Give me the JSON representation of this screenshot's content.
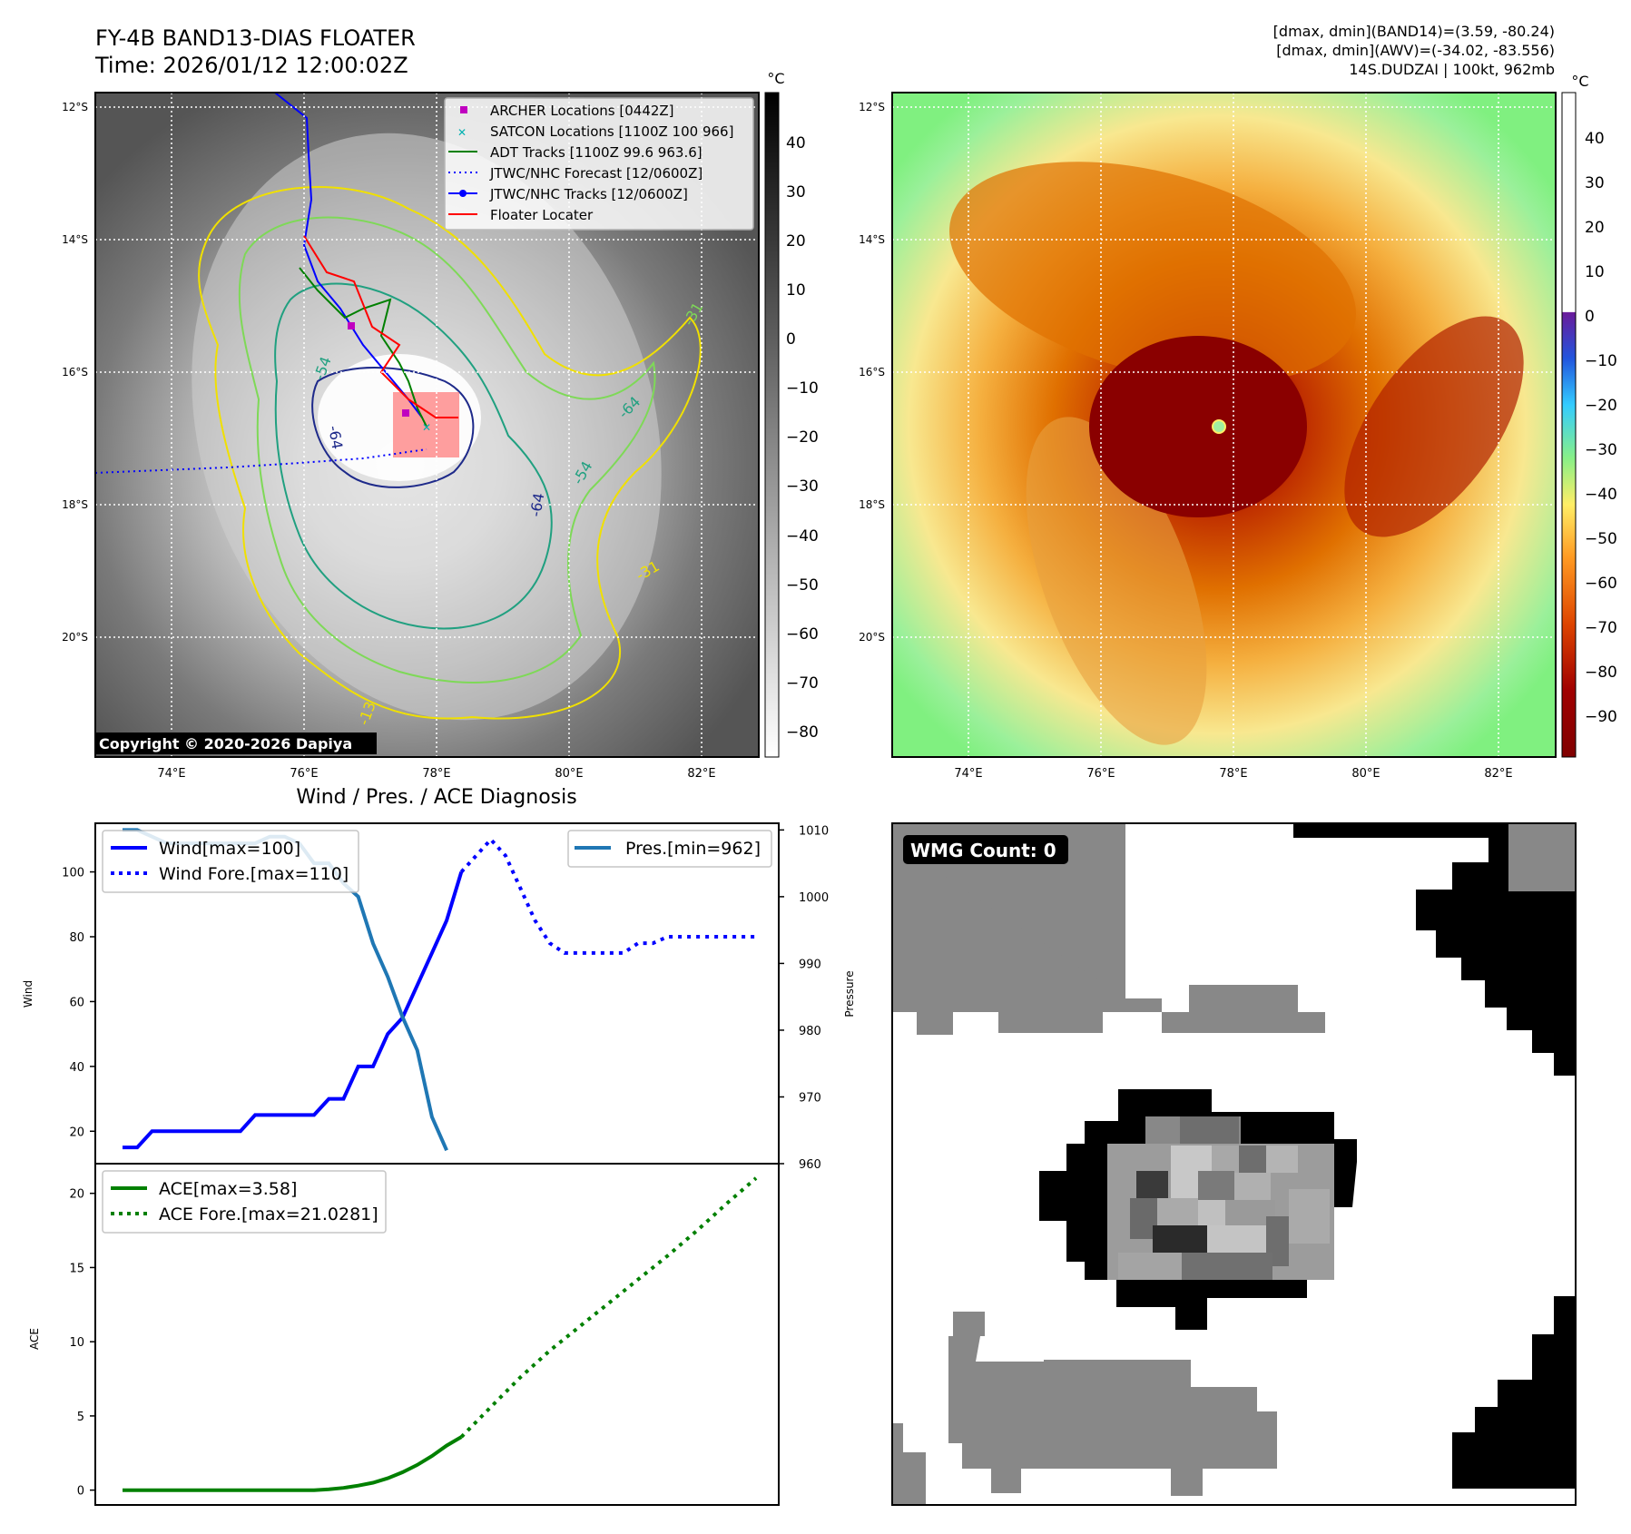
{
  "header": {
    "title_line1": "FY-4B BAND13-DIAS FLOATER",
    "title_line2": "Time: 2026/01/12 12:00:02Z",
    "info_line1": "[dmax, dmin](BAND14)=(3.59, -80.24)",
    "info_line2": "[dmax, dmin](AWV)=(-34.02, -83.556)",
    "info_line3": "14S.DUDZAI | 100kt, 962mb"
  },
  "map": {
    "lat_labels": [
      "12°S",
      "14°S",
      "16°S",
      "18°S",
      "20°S"
    ],
    "lon_labels": [
      "74°E",
      "76°E",
      "78°E",
      "80°E",
      "82°E"
    ],
    "copyright": "Copyright © 2020-2026 Dapiya",
    "contour_labels": [
      "-64",
      "-54",
      "-31",
      "-64",
      "-64",
      "-54",
      "-31",
      "-13"
    ]
  },
  "colorbar_left": {
    "unit": "°C",
    "ticks": [
      "40",
      "30",
      "20",
      "10",
      "0",
      "−10",
      "−20",
      "−30",
      "−40",
      "−50",
      "−60",
      "−70",
      "−80"
    ]
  },
  "colorbar_right": {
    "unit": "°C",
    "ticks": [
      "40",
      "30",
      "20",
      "10",
      "0",
      "−10",
      "−20",
      "−30",
      "−40",
      "−50",
      "−60",
      "−70",
      "−80",
      "−90"
    ]
  },
  "legend": {
    "items": [
      {
        "label": "ARCHER Locations [0442Z]",
        "color": "#c000c0",
        "kind": "square"
      },
      {
        "label": "SATCON Locations [1100Z 100 966]",
        "color": "#00b0b0",
        "kind": "x"
      },
      {
        "label": "ADT Tracks [1100Z 99.6 963.6]",
        "color": "#008000",
        "kind": "line"
      },
      {
        "label": "JTWC/NHC Forecast [12/0600Z]",
        "color": "#0000ff",
        "kind": "dotted"
      },
      {
        "label": "JTWC/NHC Tracks [12/0600Z]",
        "color": "#0000ff",
        "kind": "line-dot"
      },
      {
        "label": "Floater Locater",
        "color": "#ff0000",
        "kind": "line"
      }
    ]
  },
  "wmg": {
    "label": "WMG Count: 0"
  },
  "chart_data": [
    {
      "type": "line",
      "title": "Wind / Pres. / ACE Diagnosis",
      "ylabel": "Wind",
      "ylabel_right": "Pressure",
      "x": [
        0,
        1,
        2,
        3,
        4,
        5,
        6,
        7,
        8,
        9,
        10,
        11,
        12,
        13,
        14,
        15,
        16,
        17,
        18,
        19,
        20,
        21,
        22,
        23,
        24,
        25,
        26,
        27,
        28,
        29,
        30,
        31,
        32,
        33,
        34,
        35,
        36,
        37,
        38,
        39,
        40,
        41,
        42,
        43
      ],
      "ylim": [
        10,
        115
      ],
      "ylim_right": [
        960,
        1011
      ],
      "yticks": [
        "20",
        "40",
        "60",
        "80",
        "100"
      ],
      "yticks_right": [
        "960",
        "970",
        "980",
        "990",
        "1000",
        "1010"
      ],
      "series": [
        {
          "name": "Wind[max=100]",
          "axis": "left",
          "style": "solid",
          "color": "#0000ff",
          "x": [
            0,
            1,
            2,
            3,
            4,
            5,
            6,
            7,
            8,
            9,
            10,
            11,
            12,
            13,
            14,
            15,
            16,
            17,
            18,
            19,
            20,
            21,
            22,
            23,
            24,
            25,
            26,
            27,
            28,
            29,
            30
          ],
          "values": [
            15,
            15,
            20,
            20,
            20,
            20,
            20,
            20,
            20,
            25,
            25,
            25,
            25,
            25,
            30,
            30,
            40,
            40,
            50,
            55,
            65,
            75,
            85,
            100,
            null,
            null,
            null,
            null,
            null,
            null,
            null
          ]
        },
        {
          "name": "Wind Fore.[max=110]",
          "axis": "left",
          "style": "dotted",
          "color": "#0000ff",
          "x": [
            23,
            24,
            25,
            26,
            27,
            28,
            29,
            30,
            31,
            32,
            33,
            34,
            35,
            36,
            37,
            38,
            39,
            40,
            41,
            42,
            43
          ],
          "values": [
            100,
            105,
            110,
            105,
            95,
            85,
            78,
            75,
            75,
            75,
            75,
            75,
            78,
            78,
            80,
            80,
            80,
            80,
            80,
            80,
            80
          ]
        },
        {
          "name": "Pres.[min=962]",
          "axis": "right",
          "style": "solid",
          "color": "#1f77b4",
          "x": [
            0,
            1,
            2,
            3,
            4,
            5,
            6,
            7,
            8,
            9,
            10,
            11,
            12,
            13,
            14,
            15,
            16,
            17,
            18,
            19,
            20,
            21,
            22,
            23
          ],
          "values": [
            1010,
            1010,
            1009,
            1008,
            1008,
            1008,
            1008,
            1008,
            1008,
            1008,
            1009,
            1009,
            1008,
            1005,
            1005,
            1002,
            1000,
            993,
            988,
            982,
            977,
            967,
            962,
            null
          ]
        }
      ],
      "legend": [
        {
          "label": "Wind[max=100]",
          "style": "solid",
          "color": "#0000ff"
        },
        {
          "label": "Wind Fore.[max=110]",
          "style": "dotted",
          "color": "#0000ff"
        }
      ],
      "legend_right": [
        {
          "label": "Pres.[min=962]",
          "style": "solid",
          "color": "#1f77b4"
        }
      ]
    },
    {
      "type": "line",
      "ylabel": "ACE",
      "x": [
        0,
        1,
        2,
        3,
        4,
        5,
        6,
        7,
        8,
        9,
        10,
        11,
        12,
        13,
        14,
        15,
        16,
        17,
        18,
        19,
        20,
        21,
        22,
        23,
        24,
        25,
        26,
        27,
        28,
        29,
        30,
        31,
        32,
        33,
        34,
        35,
        36,
        37,
        38,
        39,
        40,
        41,
        42,
        43
      ],
      "ylim": [
        -1,
        22
      ],
      "yticks": [
        "0",
        "5",
        "10",
        "15",
        "20"
      ],
      "series": [
        {
          "name": "ACE[max=3.58]",
          "style": "solid",
          "color": "#008000",
          "x": [
            0,
            4,
            8,
            12,
            13,
            14,
            15,
            16,
            17,
            18,
            19,
            20,
            21,
            22,
            23
          ],
          "values": [
            0,
            0,
            0,
            0,
            0,
            0.05,
            0.15,
            0.3,
            0.5,
            0.8,
            1.2,
            1.7,
            2.3,
            3.0,
            3.58
          ]
        },
        {
          "name": "ACE Fore.[max=21.0281]",
          "style": "dotted",
          "color": "#008000",
          "x": [
            23,
            25,
            27,
            29,
            31,
            33,
            35,
            37,
            39,
            41,
            43
          ],
          "values": [
            3.58,
            5.6,
            7.6,
            9.4,
            11.0,
            12.6,
            14.2,
            15.8,
            17.5,
            19.3,
            21.03
          ]
        }
      ],
      "legend": [
        {
          "label": "ACE[max=3.58]",
          "style": "solid",
          "color": "#008000"
        },
        {
          "label": "ACE Fore.[max=21.0281]",
          "style": "dotted",
          "color": "#008000"
        }
      ]
    }
  ]
}
